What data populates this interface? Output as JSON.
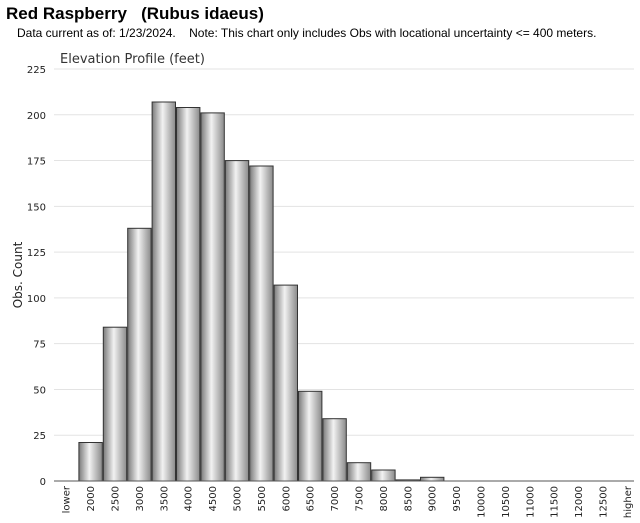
{
  "header": {
    "title": "Red Raspberry   (Rubus idaeus)",
    "note": "Data current as of: 1/23/2024.    Note: This chart only includes Obs with locational uncertainty <= 400 meters."
  },
  "chart_data": {
    "type": "bar",
    "title": "Elevation Profile (feet)",
    "xlabel": "",
    "ylabel": "Obs. Count",
    "ylim": [
      0,
      225
    ],
    "yticks": [
      "0",
      "25",
      "50",
      "75",
      "100",
      "125",
      "150",
      "175",
      "200",
      "225"
    ],
    "grid": true,
    "legend": "none",
    "categories": [
      "lower",
      "2000",
      "2500",
      "3000",
      "3500",
      "4000",
      "4500",
      "5000",
      "5500",
      "6000",
      "6500",
      "7000",
      "7500",
      "8000",
      "8500",
      "9000",
      "9500",
      "10000",
      "10500",
      "11000",
      "11500",
      "12000",
      "12500",
      "higher"
    ],
    "values": [
      0,
      21,
      84,
      138,
      207,
      204,
      201,
      175,
      172,
      107,
      49,
      34,
      10,
      6,
      0.6,
      2,
      0,
      0,
      0,
      0,
      0,
      0,
      0,
      0
    ],
    "bar_color": "#c8c8c8"
  }
}
